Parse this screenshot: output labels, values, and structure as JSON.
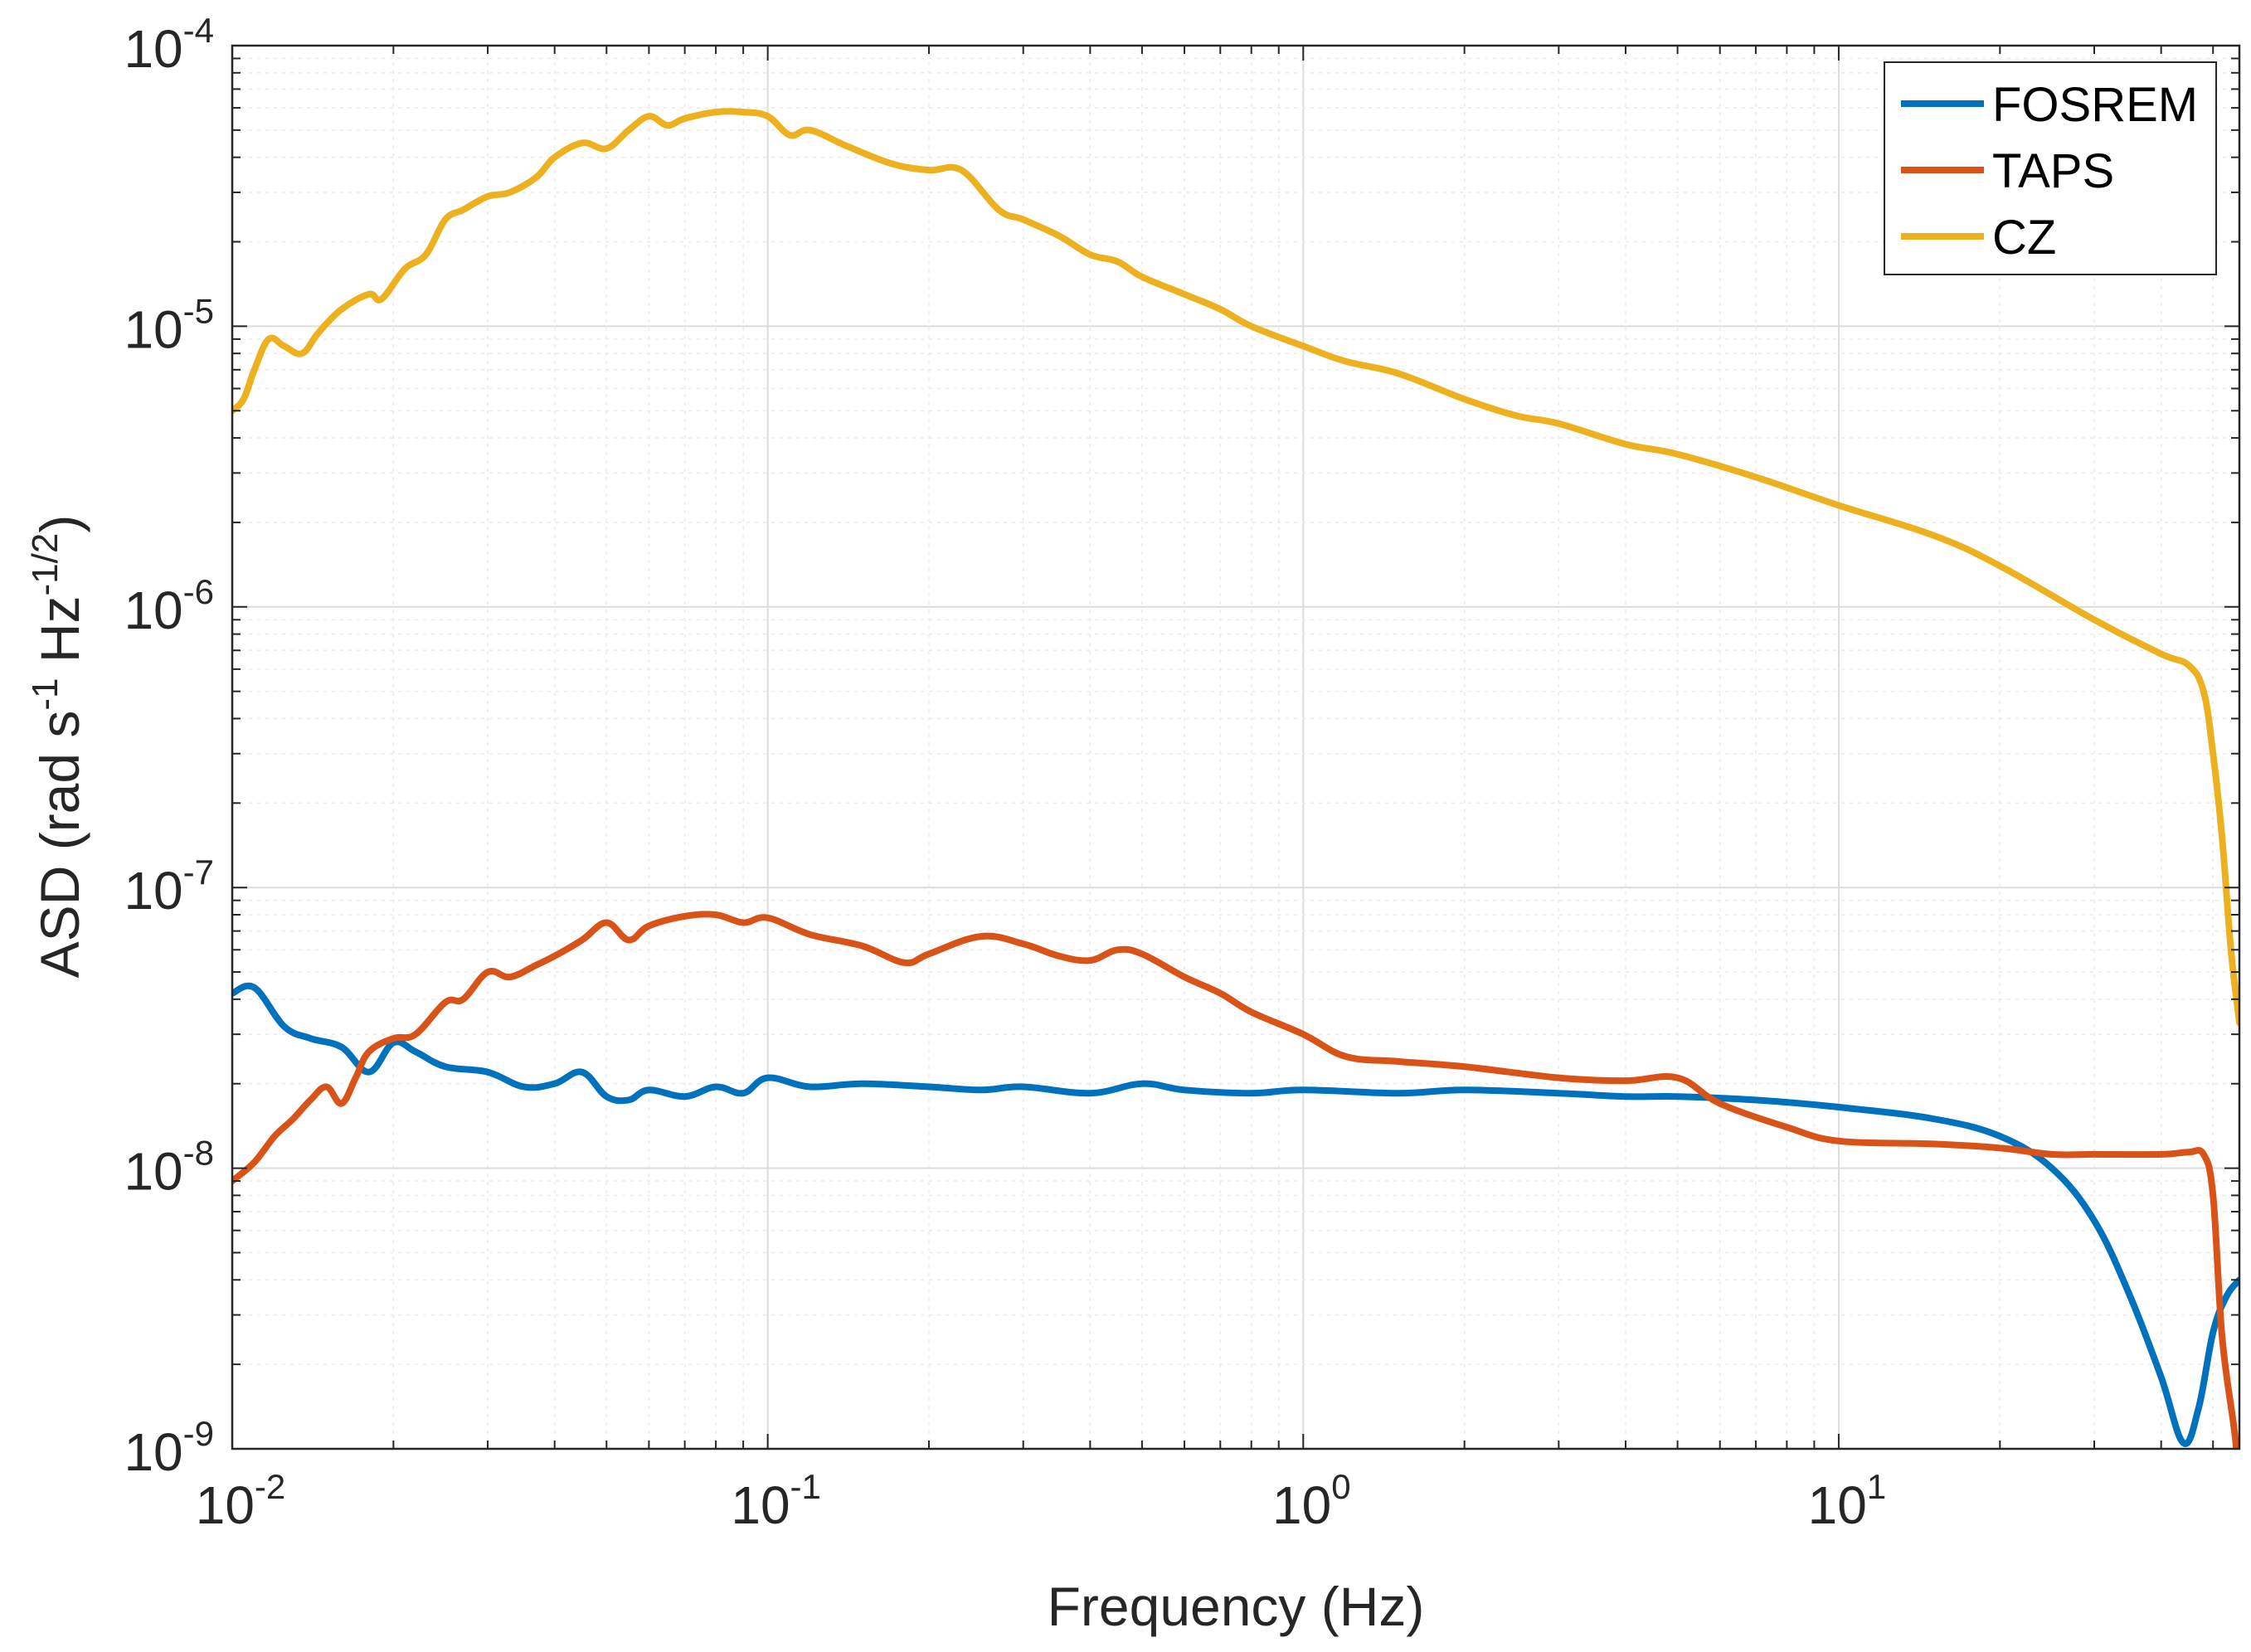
{
  "chart_data": {
    "type": "line",
    "title": "",
    "xscale": "log",
    "yscale": "log",
    "xlim": [
      0.01,
      56
    ],
    "ylim": [
      1e-09,
      0.0001
    ],
    "grid": true,
    "minor_grid": true,
    "legend_position": "top-right",
    "xlabel": "Frequency (Hz)",
    "ylabel": {
      "prefix": "ASD (rad s",
      "exp1": "-1",
      "middle": " Hz",
      "exp2": "-1/2",
      "suffix": ")"
    },
    "x_ticks": [
      {
        "base": "10",
        "exp": "-2",
        "value": 0.01
      },
      {
        "base": "10",
        "exp": "-1",
        "value": 0.1
      },
      {
        "base": "10",
        "exp": "0",
        "value": 1
      },
      {
        "base": "10",
        "exp": "1",
        "value": 10
      }
    ],
    "y_ticks": [
      {
        "base": "10",
        "exp": "-9",
        "value": 1e-09
      },
      {
        "base": "10",
        "exp": "-8",
        "value": 1e-08
      },
      {
        "base": "10",
        "exp": "-7",
        "value": 1e-07
      },
      {
        "base": "10",
        "exp": "-6",
        "value": 1e-06
      },
      {
        "base": "10",
        "exp": "-5",
        "value": 1e-05
      },
      {
        "base": "10",
        "exp": "-4",
        "value": 0.0001
      }
    ],
    "series": [
      {
        "name": "FOSREM",
        "color": "#0072BD",
        "x": [
          0.01,
          0.011,
          0.0125,
          0.014,
          0.016,
          0.018,
          0.02,
          0.022,
          0.025,
          0.03,
          0.035,
          0.04,
          0.045,
          0.05,
          0.055,
          0.06,
          0.07,
          0.08,
          0.09,
          0.1,
          0.12,
          0.15,
          0.2,
          0.25,
          0.3,
          0.4,
          0.5,
          0.6,
          0.8,
          1.0,
          1.5,
          2,
          3,
          4,
          5,
          7,
          10,
          15,
          20,
          25,
          30,
          35,
          40,
          44,
          47,
          50,
          53,
          56
        ],
        "y": [
          4.2e-08,
          4.4e-08,
          3.2e-08,
          2.9e-08,
          2.7e-08,
          2.2e-08,
          2.8e-08,
          2.6e-08,
          2.3e-08,
          2.2e-08,
          1.95e-08,
          2e-08,
          2.2e-08,
          1.8e-08,
          1.75e-08,
          1.9e-08,
          1.8e-08,
          1.95e-08,
          1.85e-08,
          2.1e-08,
          1.95e-08,
          2e-08,
          1.95e-08,
          1.9e-08,
          1.95e-08,
          1.85e-08,
          2e-08,
          1.9e-08,
          1.85e-08,
          1.9e-08,
          1.85e-08,
          1.9e-08,
          1.85e-08,
          1.8e-08,
          1.8e-08,
          1.75e-08,
          1.65e-08,
          1.5e-08,
          1.3e-08,
          1e-08,
          6.5e-09,
          3.5e-09,
          1.8e-09,
          1.05e-09,
          1.4e-09,
          2.6e-09,
          3.5e-09,
          4e-09
        ]
      },
      {
        "name": "TAPS",
        "color": "#D95319",
        "x": [
          0.01,
          0.011,
          0.012,
          0.013,
          0.014,
          0.015,
          0.016,
          0.017,
          0.018,
          0.02,
          0.022,
          0.025,
          0.027,
          0.03,
          0.033,
          0.037,
          0.04,
          0.045,
          0.05,
          0.055,
          0.06,
          0.07,
          0.08,
          0.09,
          0.1,
          0.12,
          0.15,
          0.18,
          0.2,
          0.25,
          0.3,
          0.35,
          0.4,
          0.45,
          0.5,
          0.6,
          0.7,
          0.8,
          1.0,
          1.2,
          1.5,
          2,
          3,
          4,
          5,
          6,
          8,
          10,
          15,
          20,
          25,
          30,
          40,
          45,
          48,
          50,
          52,
          55,
          56
        ],
        "y": [
          9e-09,
          1.05e-08,
          1.3e-08,
          1.5e-08,
          1.75e-08,
          1.95e-08,
          1.7e-08,
          2.1e-08,
          2.6e-08,
          2.9e-08,
          3e-08,
          3.9e-08,
          4e-08,
          5e-08,
          4.8e-08,
          5.3e-08,
          5.7e-08,
          6.5e-08,
          7.5e-08,
          6.5e-08,
          7.3e-08,
          7.9e-08,
          8e-08,
          7.5e-08,
          7.8e-08,
          6.8e-08,
          6.2e-08,
          5.4e-08,
          5.8e-08,
          6.7e-08,
          6.3e-08,
          5.7e-08,
          5.5e-08,
          6e-08,
          5.8e-08,
          4.8e-08,
          4.2e-08,
          3.6e-08,
          3e-08,
          2.5e-08,
          2.4e-08,
          2.3e-08,
          2.1e-08,
          2.05e-08,
          2.1e-08,
          1.7e-08,
          1.4e-08,
          1.25e-08,
          1.22e-08,
          1.18e-08,
          1.12e-08,
          1.12e-08,
          1.12e-08,
          1.14e-08,
          1.12e-08,
          8e-09,
          2.5e-09,
          1.1e-09,
          7e-10
        ]
      },
      {
        "name": "CZ",
        "color": "#EDB120",
        "x": [
          0.01,
          0.0105,
          0.011,
          0.0117,
          0.0125,
          0.0135,
          0.0145,
          0.016,
          0.018,
          0.019,
          0.021,
          0.023,
          0.025,
          0.027,
          0.03,
          0.033,
          0.037,
          0.04,
          0.045,
          0.05,
          0.055,
          0.06,
          0.065,
          0.07,
          0.08,
          0.09,
          0.1,
          0.11,
          0.12,
          0.14,
          0.17,
          0.2,
          0.23,
          0.27,
          0.3,
          0.35,
          0.4,
          0.45,
          0.5,
          0.6,
          0.7,
          0.8,
          1.0,
          1.2,
          1.5,
          2,
          2.5,
          3,
          4,
          5,
          7,
          10,
          15,
          20,
          30,
          40,
          45,
          48,
          50,
          52,
          54,
          56
        ],
        "y": [
          5e-06,
          5.5e-06,
          7e-06,
          9e-06,
          8.5e-06,
          8e-06,
          9.5e-06,
          1.15e-05,
          1.3e-05,
          1.25e-05,
          1.6e-05,
          1.8e-05,
          2.4e-05,
          2.6e-05,
          2.9e-05,
          3e-05,
          3.4e-05,
          4e-05,
          4.5e-05,
          4.3e-05,
          5e-05,
          5.6e-05,
          5.2e-05,
          5.5e-05,
          5.8e-05,
          5.8e-05,
          5.6e-05,
          4.8e-05,
          5e-05,
          4.4e-05,
          3.8e-05,
          3.6e-05,
          3.6e-05,
          2.6e-05,
          2.4e-05,
          2.1e-05,
          1.8e-05,
          1.7e-05,
          1.5e-05,
          1.3e-05,
          1.15e-05,
          1e-05,
          8.5e-06,
          7.5e-06,
          6.8e-06,
          5.5e-06,
          4.8e-06,
          4.5e-06,
          3.8e-06,
          3.5e-06,
          2.9e-06,
          2.3e-06,
          1.8e-06,
          1.4e-06,
          9e-07,
          6.8e-07,
          6.2e-07,
          5e-07,
          3e-07,
          1.5e-07,
          6e-08,
          3.3e-08
        ]
      }
    ]
  }
}
